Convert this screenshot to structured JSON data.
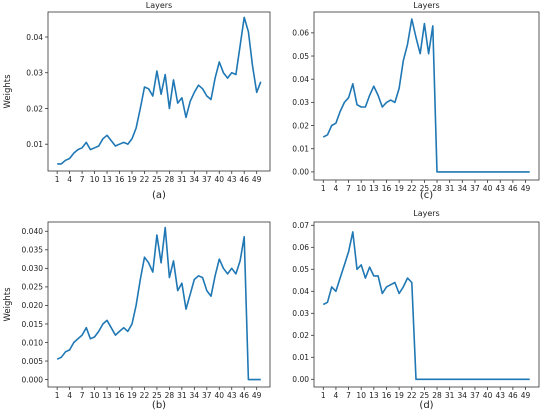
{
  "chart_data": [
    {
      "type": "line",
      "title": "Layers",
      "ylabel": "Weights",
      "caption": "(a)",
      "color": "#1f77b4",
      "xticks": [
        1,
        4,
        7,
        10,
        13,
        16,
        19,
        22,
        25,
        28,
        31,
        34,
        37,
        40,
        43,
        46,
        49
      ],
      "yticks": [
        "0.01",
        "0.02",
        "0.03",
        "0.04"
      ],
      "ylim": [
        0.0025,
        0.047
      ],
      "x": [
        1,
        2,
        3,
        4,
        5,
        6,
        7,
        8,
        9,
        10,
        11,
        12,
        13,
        14,
        15,
        16,
        17,
        18,
        19,
        20,
        21,
        22,
        23,
        24,
        25,
        26,
        27,
        28,
        29,
        30,
        31,
        32,
        33,
        34,
        35,
        36,
        37,
        38,
        39,
        40,
        41,
        42,
        43,
        44,
        45,
        46,
        47,
        48,
        49,
        50
      ],
      "values": [
        0.0045,
        0.0045,
        0.0055,
        0.006,
        0.0075,
        0.0085,
        0.009,
        0.0105,
        0.0085,
        0.009,
        0.0095,
        0.0115,
        0.0125,
        0.011,
        0.0095,
        0.01,
        0.0105,
        0.01,
        0.0115,
        0.0145,
        0.02,
        0.026,
        0.0255,
        0.0235,
        0.0305,
        0.024,
        0.0295,
        0.02,
        0.028,
        0.0215,
        0.023,
        0.0175,
        0.022,
        0.0245,
        0.0265,
        0.0255,
        0.0235,
        0.0225,
        0.0285,
        0.033,
        0.03,
        0.0285,
        0.03,
        0.0295,
        0.0375,
        0.0455,
        0.0415,
        0.032,
        0.0245,
        0.0275
      ]
    },
    {
      "type": "line",
      "title": "Layers",
      "ylabel": "",
      "caption": "(c)",
      "color": "#1f77b4",
      "xticks": [
        1,
        4,
        7,
        10,
        13,
        16,
        19,
        22,
        25,
        28,
        31,
        34,
        37,
        40,
        43,
        46,
        49
      ],
      "yticks": [
        "0.00",
        "0.01",
        "0.02",
        "0.03",
        "0.04",
        "0.05",
        "0.06"
      ],
      "ylim": [
        -0.0035,
        0.069
      ],
      "x": [
        1,
        2,
        3,
        4,
        5,
        6,
        7,
        8,
        9,
        10,
        11,
        12,
        13,
        14,
        15,
        16,
        17,
        18,
        19,
        20,
        21,
        22,
        23,
        24,
        25,
        26,
        27,
        28,
        29,
        30,
        31,
        32,
        33,
        34,
        35,
        36,
        37,
        38,
        39,
        40,
        41,
        42,
        43,
        44,
        45,
        46,
        47,
        48,
        49,
        50
      ],
      "values": [
        0.015,
        0.016,
        0.02,
        0.021,
        0.026,
        0.03,
        0.032,
        0.038,
        0.029,
        0.028,
        0.028,
        0.033,
        0.037,
        0.033,
        0.028,
        0.03,
        0.031,
        0.03,
        0.036,
        0.048,
        0.055,
        0.066,
        0.058,
        0.051,
        0.064,
        0.051,
        0.063,
        0.0,
        0.0,
        0.0,
        0.0,
        0.0,
        0.0,
        0.0,
        0.0,
        0.0,
        0.0,
        0.0,
        0.0,
        0.0,
        0.0,
        0.0,
        0.0,
        0.0,
        0.0,
        0.0,
        0.0,
        0.0,
        0.0,
        0.0
      ]
    },
    {
      "type": "line",
      "title": "",
      "ylabel": "Weights",
      "caption": "(b)",
      "color": "#1f77b4",
      "xticks": [
        1,
        4,
        7,
        10,
        13,
        16,
        19,
        22,
        25,
        28,
        31,
        34,
        37,
        40,
        43,
        46,
        49
      ],
      "yticks": [
        "0.000",
        "0.005",
        "0.010",
        "0.015",
        "0.020",
        "0.025",
        "0.030",
        "0.035",
        "0.040"
      ],
      "ylim": [
        -0.002,
        0.0425
      ],
      "x": [
        1,
        2,
        3,
        4,
        5,
        6,
        7,
        8,
        9,
        10,
        11,
        12,
        13,
        14,
        15,
        16,
        17,
        18,
        19,
        20,
        21,
        22,
        23,
        24,
        25,
        26,
        27,
        28,
        29,
        30,
        31,
        32,
        33,
        34,
        35,
        36,
        37,
        38,
        39,
        40,
        41,
        42,
        43,
        44,
        45,
        46,
        47,
        48,
        49,
        50
      ],
      "values": [
        0.0055,
        0.006,
        0.0075,
        0.008,
        0.01,
        0.011,
        0.012,
        0.014,
        0.011,
        0.0115,
        0.013,
        0.015,
        0.016,
        0.014,
        0.012,
        0.013,
        0.014,
        0.013,
        0.015,
        0.02,
        0.027,
        0.033,
        0.0315,
        0.029,
        0.039,
        0.0315,
        0.041,
        0.0275,
        0.032,
        0.024,
        0.026,
        0.019,
        0.023,
        0.027,
        0.028,
        0.0275,
        0.024,
        0.0225,
        0.028,
        0.0325,
        0.03,
        0.0285,
        0.03,
        0.0285,
        0.032,
        0.0385,
        0.0,
        0.0,
        0.0,
        0.0
      ]
    },
    {
      "type": "line",
      "title": "Layers",
      "ylabel": "",
      "caption": "(d)",
      "color": "#1f77b4",
      "xticks": [
        1,
        4,
        7,
        10,
        13,
        16,
        19,
        22,
        25,
        28,
        31,
        34,
        37,
        40,
        43,
        46,
        49
      ],
      "yticks": [
        "0.00",
        "0.01",
        "0.02",
        "0.03",
        "0.04",
        "0.05",
        "0.06",
        "0.07"
      ],
      "ylim": [
        -0.0035,
        0.0715
      ],
      "x": [
        1,
        2,
        3,
        4,
        5,
        6,
        7,
        8,
        9,
        10,
        11,
        12,
        13,
        14,
        15,
        16,
        17,
        18,
        19,
        20,
        21,
        22,
        23,
        24,
        25,
        26,
        27,
        28,
        29,
        30,
        31,
        32,
        33,
        34,
        35,
        36,
        37,
        38,
        39,
        40,
        41,
        42,
        43,
        44,
        45,
        46,
        47,
        48,
        49,
        50
      ],
      "values": [
        0.034,
        0.035,
        0.042,
        0.04,
        0.046,
        0.052,
        0.058,
        0.067,
        0.05,
        0.052,
        0.046,
        0.051,
        0.047,
        0.047,
        0.039,
        0.042,
        0.043,
        0.044,
        0.039,
        0.042,
        0.046,
        0.044,
        0.0,
        0.0,
        0.0,
        0.0,
        0.0,
        0.0,
        0.0,
        0.0,
        0.0,
        0.0,
        0.0,
        0.0,
        0.0,
        0.0,
        0.0,
        0.0,
        0.0,
        0.0,
        0.0,
        0.0,
        0.0,
        0.0,
        0.0,
        0.0,
        0.0,
        0.0,
        0.0,
        0.0
      ]
    }
  ]
}
